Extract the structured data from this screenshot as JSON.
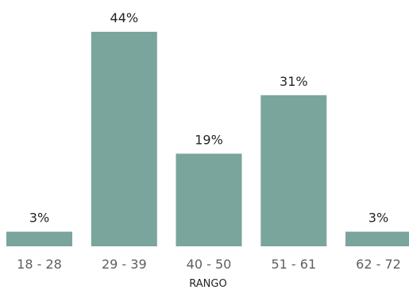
{
  "chart_data": {
    "type": "bar",
    "categories": [
      "18 - 28",
      "29 - 39",
      "40 - 50",
      "51 - 61",
      "62 - 72"
    ],
    "values": [
      3,
      44,
      19,
      31,
      3
    ],
    "data_labels": [
      "3%",
      "44%",
      "19%",
      "31%",
      "3%"
    ],
    "title": "",
    "xlabel": "RANGO",
    "ylabel": "",
    "ylim": [
      0,
      44
    ],
    "grid": false,
    "bar_color": "#7aa59d"
  }
}
